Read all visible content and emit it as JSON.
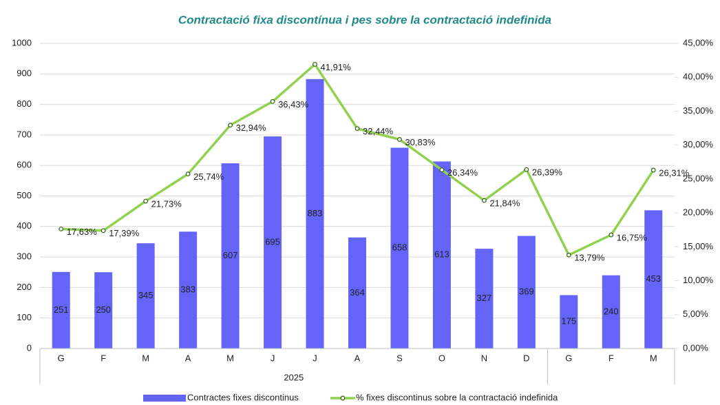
{
  "chart_data": {
    "type": "bar_line",
    "title": "Contractació fixa discontínua i pes sobre la contractació indefinida",
    "categories": [
      "G",
      "F",
      "M",
      "A",
      "M",
      "J",
      "J",
      "A",
      "S",
      "O",
      "N",
      "D",
      "G",
      "F",
      "M"
    ],
    "groups": [
      {
        "name": "2025",
        "count": 12
      },
      {
        "name": null,
        "count": 3
      }
    ],
    "series": [
      {
        "name": "Contractes fixes discontinus",
        "type": "bar",
        "color": "#6464f8",
        "values": [
          251,
          250,
          345,
          383,
          607,
          695,
          883,
          364,
          658,
          613,
          327,
          369,
          175,
          240,
          453
        ]
      },
      {
        "name": "% fixes discontinus sobre la contractació indefinida",
        "type": "line",
        "axis": "y2",
        "color": "#92d050",
        "marker_color": "#3a6b1e",
        "values": [
          17.63,
          17.39,
          21.73,
          25.74,
          32.94,
          36.43,
          41.91,
          32.44,
          30.83,
          26.34,
          21.84,
          26.39,
          13.79,
          16.75,
          26.31
        ],
        "value_labels": [
          "17,63%",
          "17,39%",
          "21,73%",
          "25,74%",
          "32,94%",
          "36,43%",
          "41,91%",
          "32,44%",
          "30,83%",
          "26,34%",
          "21,84%",
          "26,39%",
          "13,79%",
          "16,75%",
          "26,31%"
        ]
      }
    ],
    "ylim": [
      0,
      1000
    ],
    "yticks": [
      0,
      100,
      200,
      300,
      400,
      500,
      600,
      700,
      800,
      900,
      1000
    ],
    "y2lim": [
      0,
      45
    ],
    "y2ticks": [
      {
        "value": 0,
        "label": "0,00%"
      },
      {
        "value": 5,
        "label": "5,00%"
      },
      {
        "value": 10,
        "label": "10,00%"
      },
      {
        "value": 15,
        "label": "15,00%"
      },
      {
        "value": 20,
        "label": "20,00%"
      },
      {
        "value": 25,
        "label": "25,00%"
      },
      {
        "value": 30,
        "label": "30,00%"
      },
      {
        "value": 35,
        "label": "35,00%"
      },
      {
        "value": 40,
        "label": "40,00%"
      },
      {
        "value": 45,
        "label": "45,00%"
      }
    ],
    "grid": true,
    "legend": "bottom"
  }
}
